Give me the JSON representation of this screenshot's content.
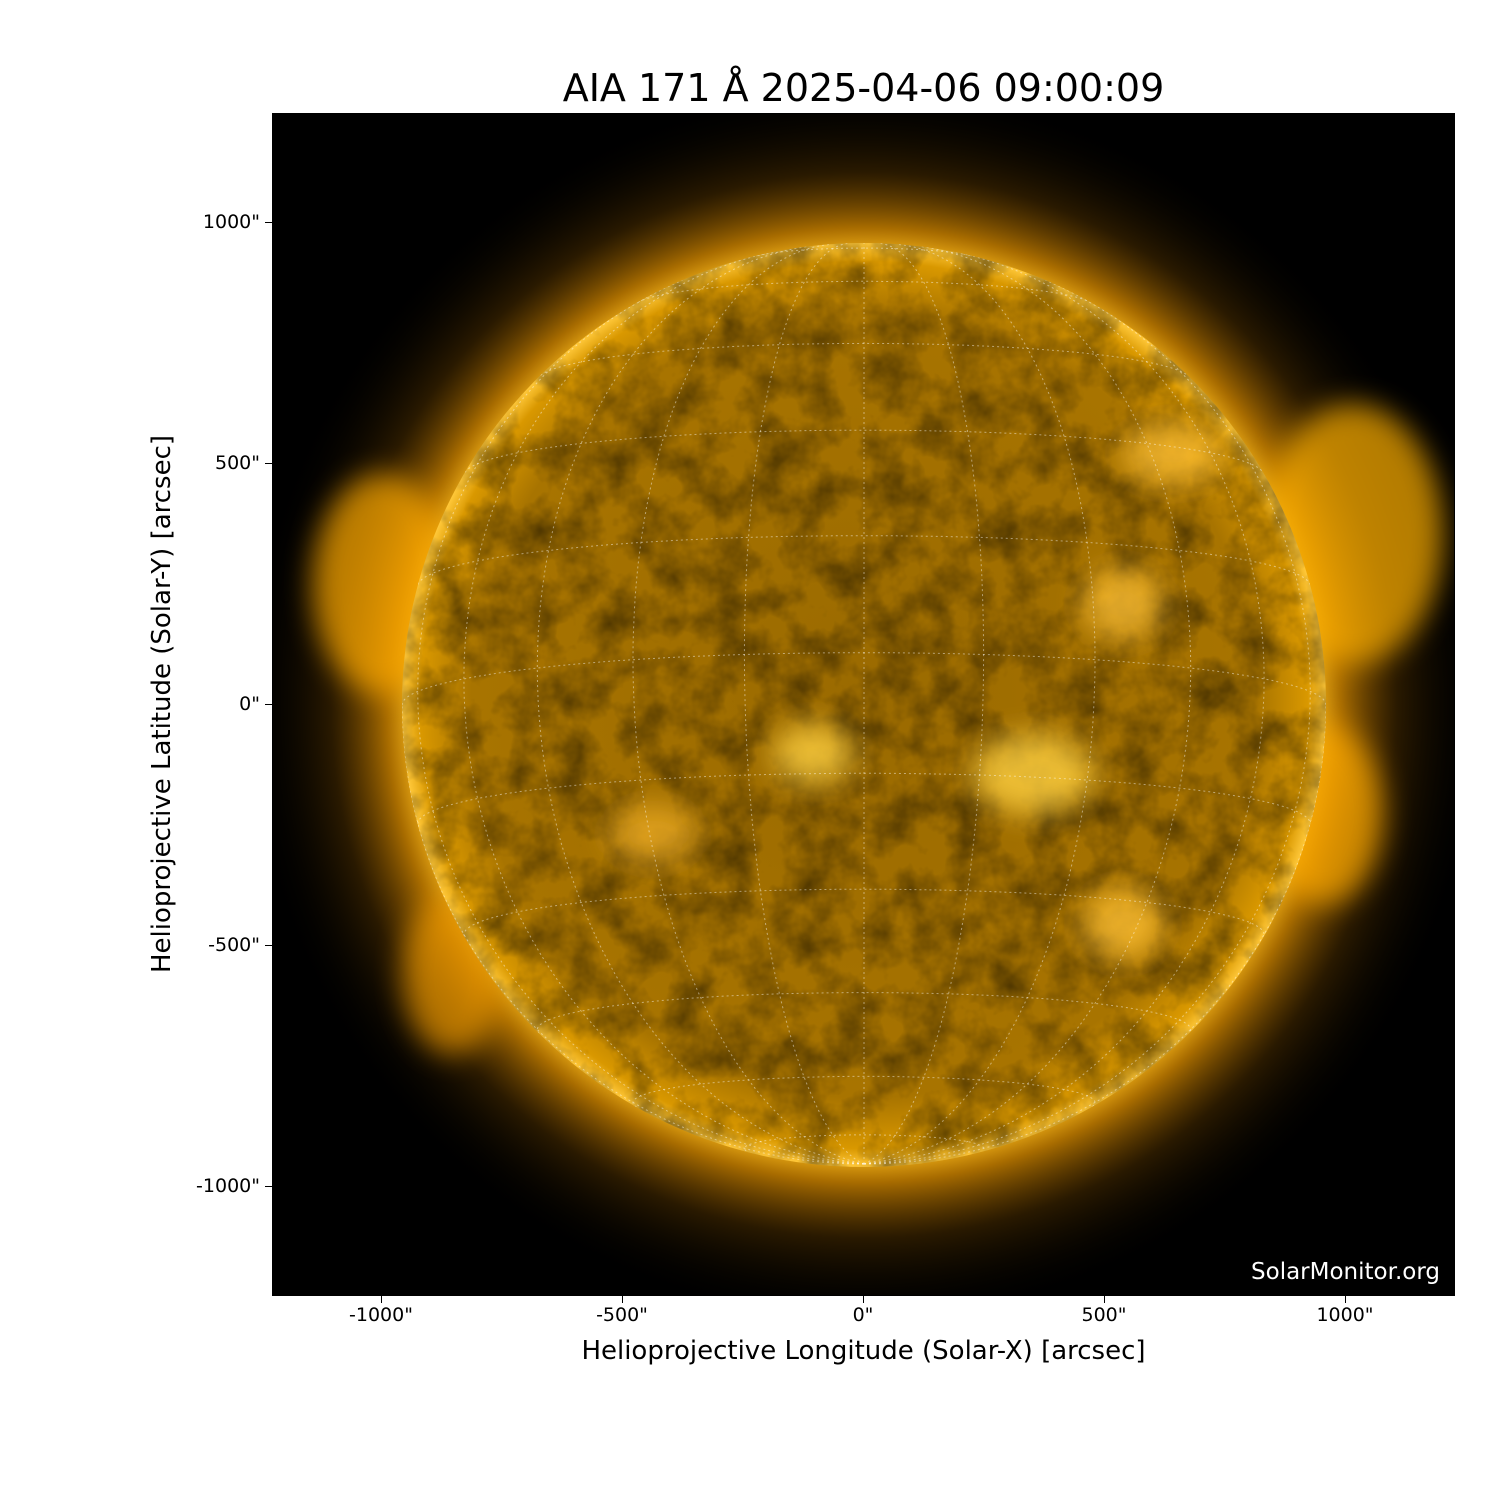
{
  "title": "AIA 171 Å 2025-04-06 09:00:09",
  "x_axis": {
    "label": "Helioprojective Longitude (Solar-X) [arcsec]",
    "ticks": [
      "-1000\"",
      "-500\"",
      "0\"",
      "500\"",
      "1000\""
    ],
    "tick_values": [
      -1000,
      -500,
      0,
      500,
      1000
    ]
  },
  "y_axis": {
    "label": "Helioprojective Latitude (Solar-Y) [arcsec]",
    "ticks": [
      "1000\"",
      "500\"",
      "0\"",
      "-500\"",
      "-1000\""
    ],
    "tick_values": [
      1000,
      500,
      0,
      -500,
      -1000
    ]
  },
  "credit": "SolarMonitor.org",
  "colors": {
    "sun": "#c88a00",
    "corona": "#ffb000",
    "background": "#000000"
  }
}
